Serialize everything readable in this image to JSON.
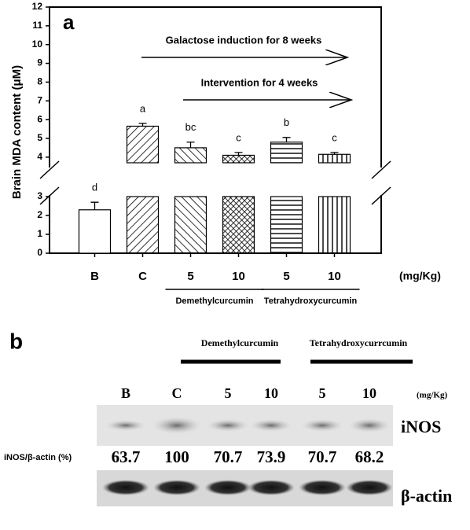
{
  "chart_data": {
    "type": "bar",
    "panel_label": "a",
    "y_label": "Brain MDA content (μM)",
    "categories": [
      "B",
      "C",
      "5",
      "10",
      "5",
      "10"
    ],
    "unit_label": "(mg/Kg)",
    "values": [
      2.3,
      5.65,
      4.5,
      4.1,
      4.8,
      4.15
    ],
    "errors": [
      0.4,
      0.15,
      0.3,
      0.15,
      0.25,
      0.1
    ],
    "letters": [
      "d",
      "a",
      "bc",
      "c",
      "b",
      "c"
    ],
    "patterns": [
      "none",
      "diag-up",
      "diag-down",
      "crosshatch",
      "horizontal",
      "vertical"
    ],
    "color": "#000000",
    "groups": [
      {
        "label": "Demethylcurcumin",
        "from": 2,
        "to": 3
      },
      {
        "label": "Tetrahydroxycurcumin",
        "from": 4,
        "to": 5
      }
    ],
    "annotations": [
      "Galactose induction for 8 weeks",
      "Intervention for 4 weeks"
    ],
    "ylim": [
      0,
      12
    ],
    "axis_break": [
      3,
      3.7
    ],
    "yticks": [
      0,
      1,
      2,
      3,
      4,
      5,
      6,
      7,
      8,
      9,
      10,
      11,
      12
    ]
  },
  "blot": {
    "panel_label": "b",
    "groups": [
      "Demethylcurcumin",
      "Tetrahydroxycurrcumin"
    ],
    "lanes": [
      "B",
      "C",
      "5",
      "10",
      "5",
      "10"
    ],
    "unit_label": "(mg/Kg)",
    "rows": [
      "iNOS",
      "β-actin"
    ],
    "ratio_label": "iNOS/β-actin (%)",
    "ratios": [
      63.7,
      100,
      70.7,
      73.9,
      70.7,
      68.2
    ]
  }
}
